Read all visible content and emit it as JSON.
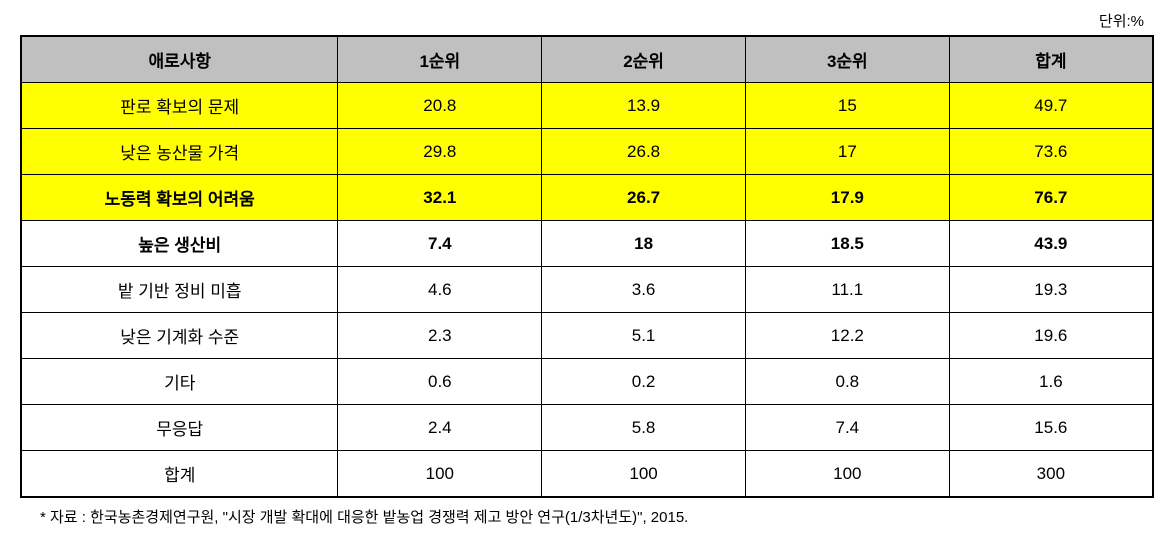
{
  "unit_label": "단위:%",
  "table": {
    "columns": [
      "애로사항",
      "1순위",
      "2순위",
      "3순위",
      "합계"
    ],
    "rows": [
      {
        "label": "판로 확보의 문제",
        "v1": "20.8",
        "v2": "13.9",
        "v3": "15",
        "total": "49.7",
        "highlight": true,
        "bold": false
      },
      {
        "label": "낮은 농산물 가격",
        "v1": "29.8",
        "v2": "26.8",
        "v3": "17",
        "total": "73.6",
        "highlight": true,
        "bold": false
      },
      {
        "label": "노동력 확보의 어려움",
        "v1": "32.1",
        "v2": "26.7",
        "v3": "17.9",
        "total": "76.7",
        "highlight": true,
        "bold": true
      },
      {
        "label": "높은 생산비",
        "v1": "7.4",
        "v2": "18",
        "v3": "18.5",
        "total": "43.9",
        "highlight": false,
        "bold": true
      },
      {
        "label": "밭 기반 정비 미흡",
        "v1": "4.6",
        "v2": "3.6",
        "v3": "11.1",
        "total": "19.3",
        "highlight": false,
        "bold": false
      },
      {
        "label": "낮은 기계화 수준",
        "v1": "2.3",
        "v2": "5.1",
        "v3": "12.2",
        "total": "19.6",
        "highlight": false,
        "bold": false
      },
      {
        "label": "기타",
        "v1": "0.6",
        "v2": "0.2",
        "v3": "0.8",
        "total": "1.6",
        "highlight": false,
        "bold": false
      },
      {
        "label": "무응답",
        "v1": "2.4",
        "v2": "5.8",
        "v3": "7.4",
        "total": "15.6",
        "highlight": false,
        "bold": false
      },
      {
        "label": "합계",
        "v1": "100",
        "v2": "100",
        "v3": "100",
        "total": "300",
        "highlight": false,
        "bold": false
      }
    ]
  },
  "footnote": "* 자료 : 한국농촌경제연구원, \"시장 개발 확대에 대응한 밭농업 경쟁력 제고 방안 연구(1/3차년도)\", 2015.",
  "style": {
    "header_bg": "#c0c0c0",
    "highlight_bg": "#ffff00",
    "border_color": "#000000",
    "background": "#ffffff",
    "header_fontsize": 17,
    "cell_fontsize": 17,
    "footnote_fontsize": 15
  }
}
